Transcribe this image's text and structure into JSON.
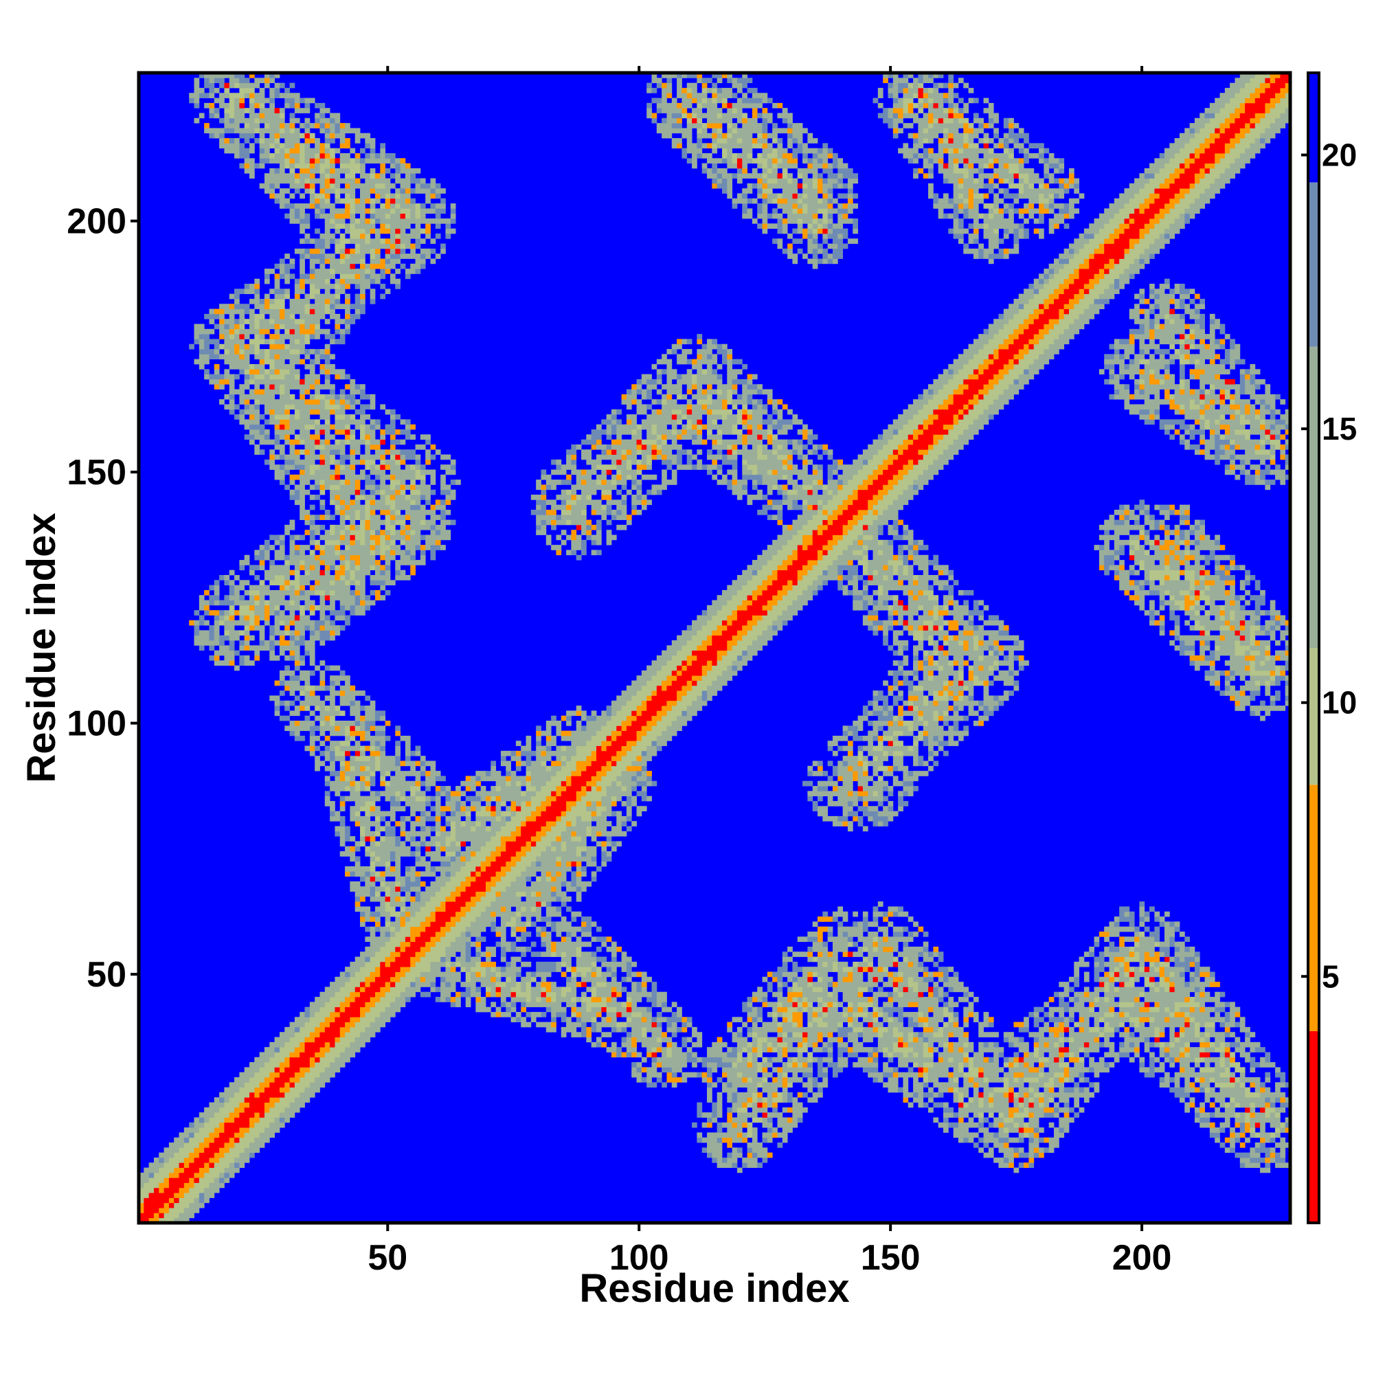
{
  "chart_data": {
    "type": "heatmap",
    "title": "",
    "xlabel": "Residue index",
    "ylabel": "Residue index",
    "xlim": [
      1,
      229
    ],
    "ylim": [
      1,
      229
    ],
    "x_ticks": [
      50,
      100,
      150,
      200
    ],
    "y_ticks": [
      50,
      100,
      150,
      200
    ],
    "x_tick_labels": [
      "50",
      "100",
      "150",
      "200"
    ],
    "y_tick_labels": [
      "50",
      "100",
      "150",
      "200"
    ],
    "matrix_size": 229,
    "symmetric": true,
    "colorbar": {
      "range": [
        0.5,
        21.5
      ],
      "ticks": [
        5,
        10,
        15,
        20
      ],
      "tick_labels": [
        "5",
        "10",
        "15",
        "20"
      ],
      "colors": [
        {
          "max": 4.0,
          "color": "#ff0000"
        },
        {
          "max": 8.5,
          "color": "#ff9a00"
        },
        {
          "max": 11.0,
          "color": "#b4c48a"
        },
        {
          "max": 16.5,
          "color": "#9aae9a"
        },
        {
          "max": 19.5,
          "color": "#6e8bb4"
        },
        {
          "max": 21.5,
          "color": "#0000ff"
        }
      ]
    },
    "value_description": "Pairwise residue distance; diagonal near 1-3 (red), background 21 (blue)",
    "bands": [
      {
        "x0": 20,
        "x1": 55,
        "y0": 224,
        "y1": 200,
        "width": 9
      },
      {
        "x0": 55,
        "x1": 20,
        "y0": 200,
        "y1": 175,
        "width": 9
      },
      {
        "x0": 20,
        "x1": 55,
        "y0": 175,
        "y1": 148,
        "width": 9
      },
      {
        "x0": 55,
        "x1": 20,
        "y0": 148,
        "y1": 120,
        "width": 9
      },
      {
        "x0": 35,
        "x1": 55,
        "y0": 105,
        "y1": 85,
        "width": 8
      },
      {
        "x0": 110,
        "x1": 135,
        "y0": 224,
        "y1": 200,
        "width": 9
      },
      {
        "x0": 88,
        "x1": 112,
        "y0": 145,
        "y1": 162,
        "width": 9
      },
      {
        "x0": 112,
        "x1": 135,
        "y0": 162,
        "y1": 145,
        "width": 9
      },
      {
        "x0": 140,
        "x1": 168,
        "y0": 140,
        "y1": 112,
        "width": 9
      },
      {
        "x0": 168,
        "x1": 142,
        "y0": 112,
        "y1": 88,
        "width": 9
      },
      {
        "x0": 205,
        "x1": 225,
        "y0": 135,
        "y1": 112,
        "width": 9
      },
      {
        "x0": 155,
        "x1": 170,
        "y0": 224,
        "y1": 200,
        "width": 8
      },
      {
        "x0": 75,
        "x1": 95,
        "y0": 60,
        "y1": 88,
        "width": 8
      },
      {
        "x0": 120,
        "x1": 140,
        "y0": 30,
        "y1": 55,
        "width": 8
      },
      {
        "x0": 140,
        "x1": 168,
        "y0": 45,
        "y1": 25,
        "width": 9
      },
      {
        "x0": 168,
        "x1": 198,
        "y0": 25,
        "y1": 45,
        "width": 9
      },
      {
        "x0": 198,
        "x1": 225,
        "y0": 45,
        "y1": 20,
        "width": 9
      },
      {
        "x0": 60,
        "x1": 95,
        "y0": 52,
        "y1": 42,
        "width": 7
      },
      {
        "x0": 205,
        "x1": 225,
        "y0": 180,
        "y1": 155,
        "width": 8
      }
    ]
  }
}
